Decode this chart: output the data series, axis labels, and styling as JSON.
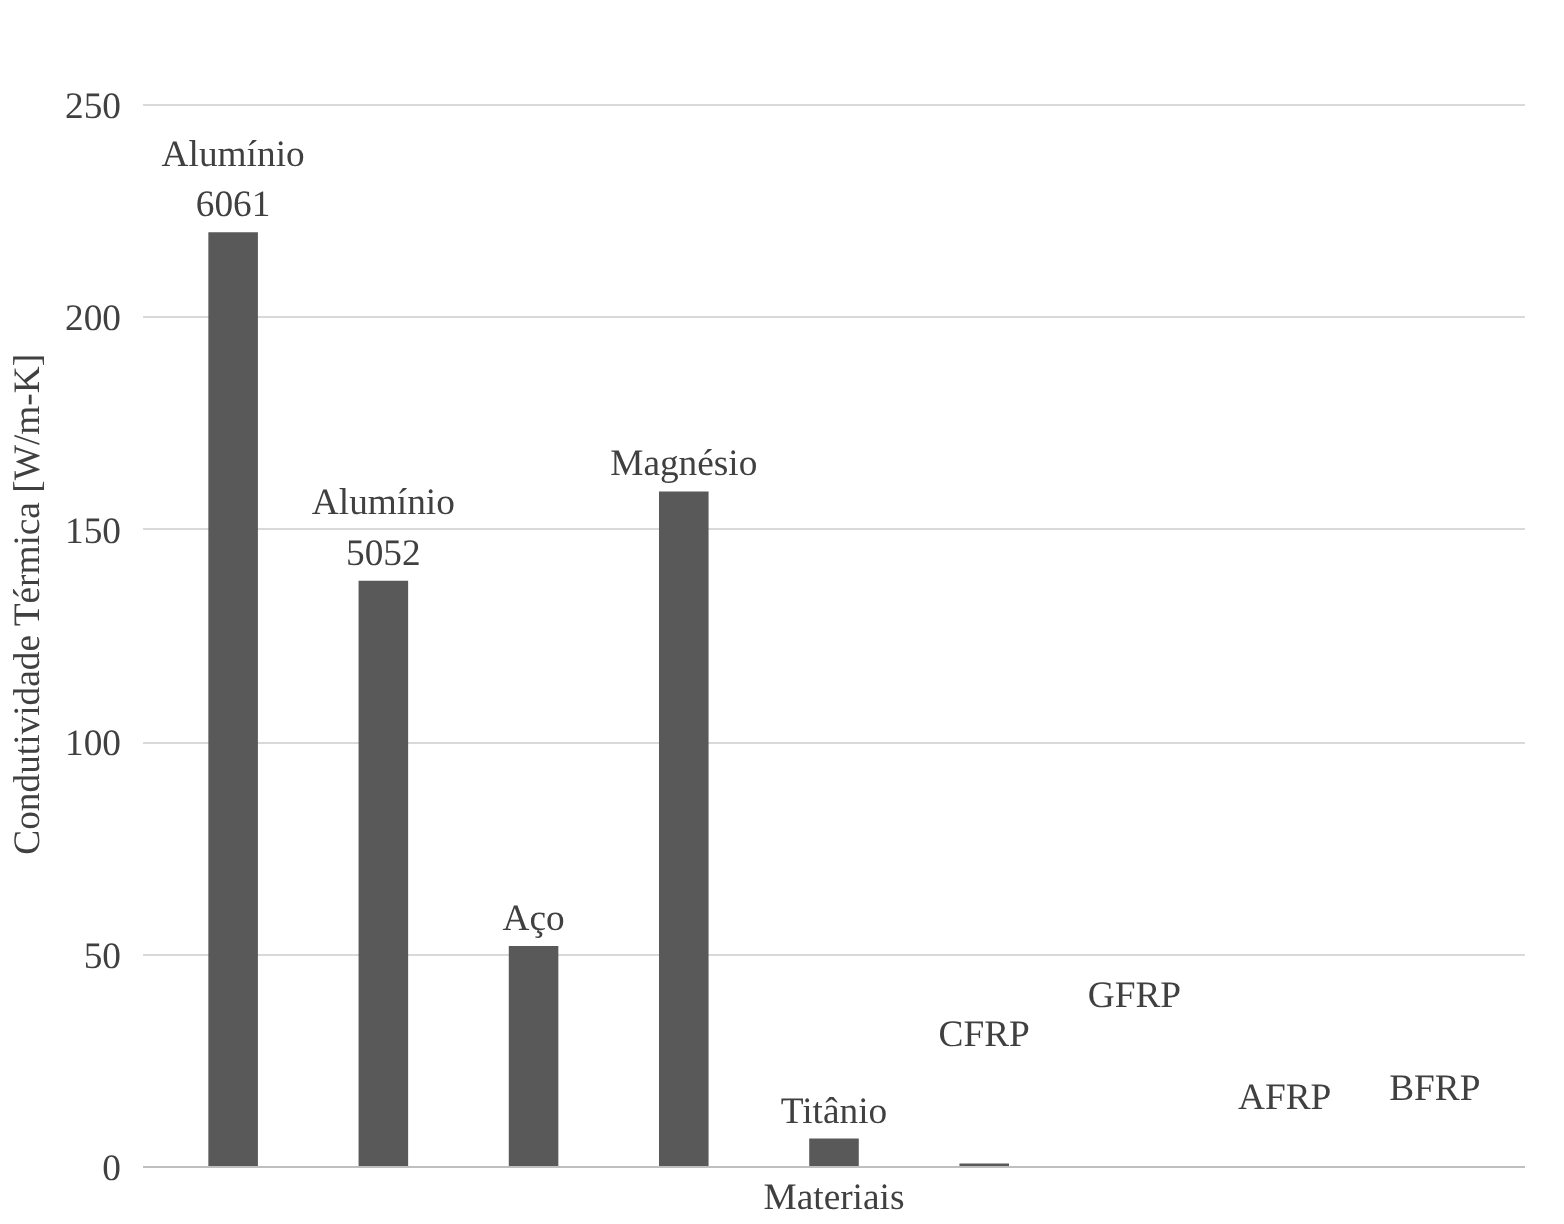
{
  "chart_data": {
    "type": "bar",
    "categories": [
      "Alumínio 6061",
      "Alumínio 5052",
      "Aço",
      "Magnésio",
      "Titânio",
      "CFRP",
      "GFRP",
      "AFRP",
      "BFRP"
    ],
    "values": [
      220,
      138,
      52,
      159,
      6.7,
      0.8,
      null,
      null,
      null
    ],
    "color": "#595959",
    "xlabel": "Materiais",
    "ylabel": "Condutividade Térmica [W/m-K]",
    "ylim": [
      0,
      250
    ],
    "yticks": [
      0,
      50,
      100,
      150,
      200,
      250
    ],
    "grid": "y"
  }
}
